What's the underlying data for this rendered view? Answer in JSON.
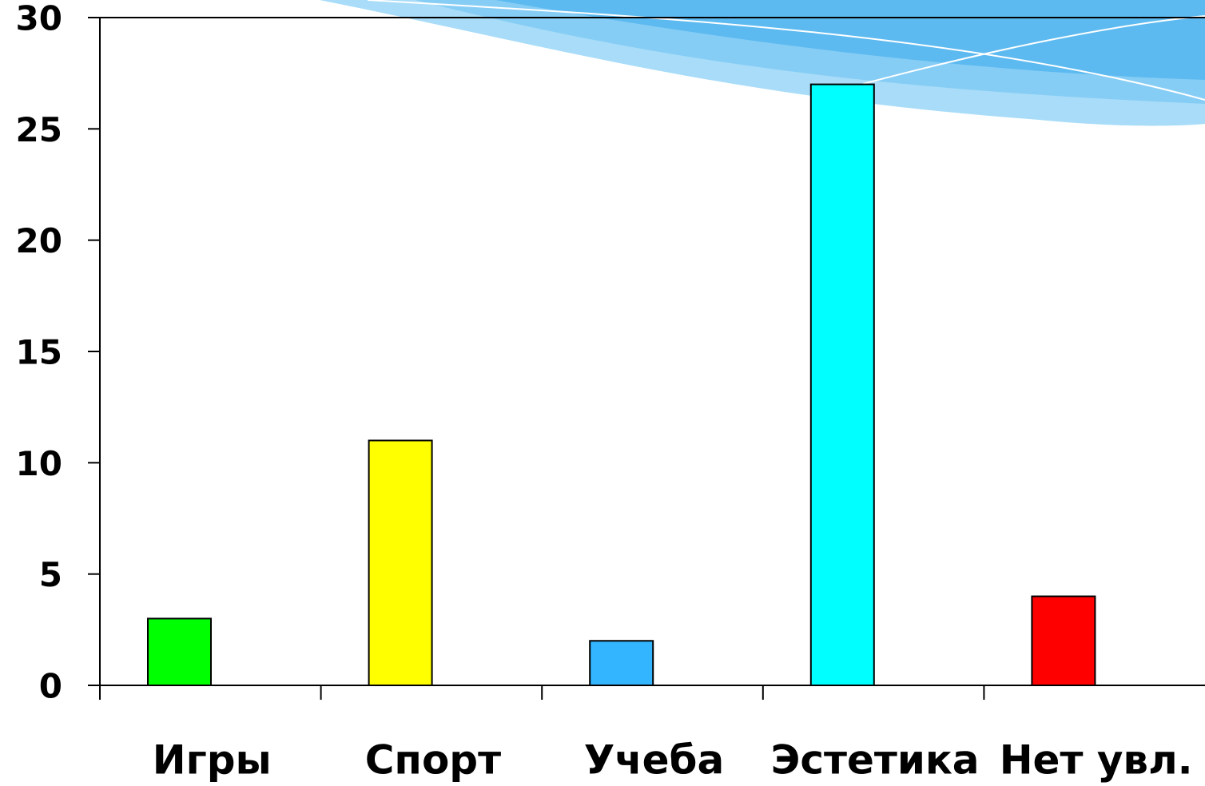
{
  "chart_data": {
    "type": "bar",
    "categories": [
      "Игры",
      "Спорт",
      "Учеба",
      "Эстетика",
      "Нет увл."
    ],
    "values": [
      3,
      11,
      2,
      27,
      4
    ],
    "colors": [
      "#00ff00",
      "#ffff00",
      "#33b5ff",
      "#00ffff",
      "#ff0000"
    ],
    "ylim": [
      0,
      30
    ],
    "yticks": [
      0,
      5,
      10,
      15,
      20,
      25,
      30
    ],
    "grid": false
  }
}
